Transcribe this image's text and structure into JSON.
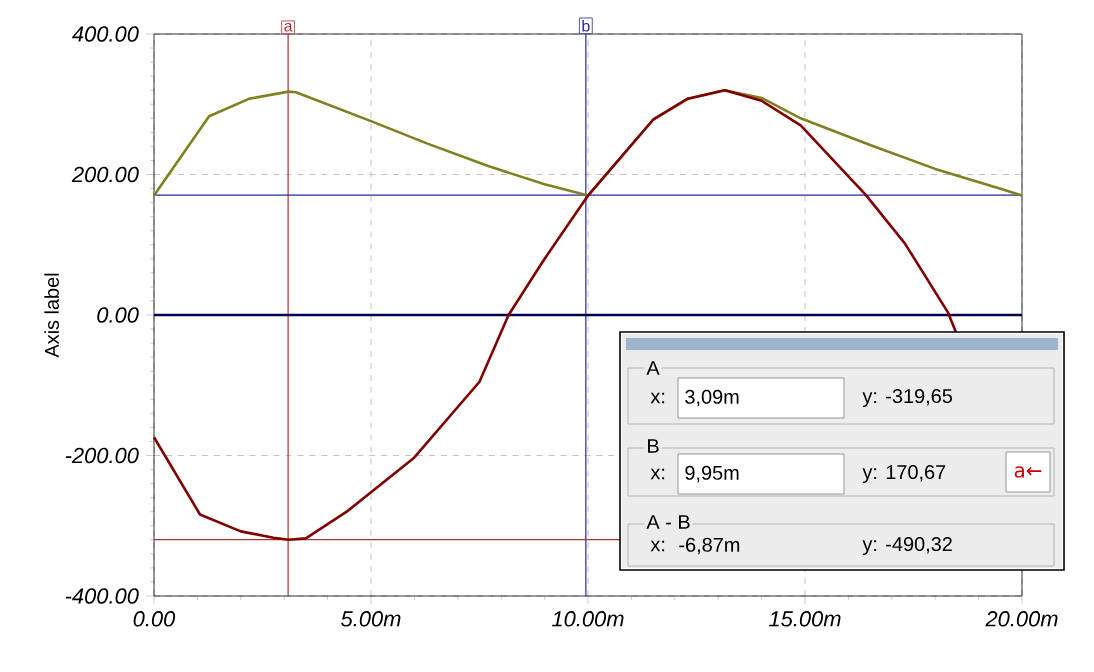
{
  "chart_data": {
    "type": "line",
    "ylabel": "Axis label",
    "xlim": [
      0,
      20
    ],
    "ylim": [
      -400,
      400
    ],
    "xticks": [
      {
        "value": 0,
        "label": "0.00"
      },
      {
        "value": 5,
        "label": "5.00m"
      },
      {
        "value": 10,
        "label": "10.00m"
      },
      {
        "value": 15,
        "label": "15.00m"
      },
      {
        "value": 20,
        "label": "20.00m"
      }
    ],
    "yticks": [
      {
        "value": -400,
        "label": "-400.00"
      },
      {
        "value": -200,
        "label": "-200.00"
      },
      {
        "value": 0,
        "label": "0.00"
      },
      {
        "value": 200,
        "label": "200.00"
      },
      {
        "value": 400,
        "label": "400.00"
      }
    ],
    "grid": true,
    "series": [
      {
        "color": "#808020",
        "x": [
          0,
          1.27,
          2.2,
          3.1,
          3.27,
          5,
          6.3,
          7.7,
          9,
          10,
          11.5,
          12.3,
          13.15,
          14.0,
          14.9,
          16.5,
          18,
          19.6,
          20
        ],
        "values": [
          170,
          283,
          308,
          318,
          317,
          276,
          244,
          212,
          186,
          170,
          278,
          308,
          320,
          309,
          280,
          242,
          208,
          178,
          170
        ]
      },
      {
        "color": "#800000",
        "x": [
          0,
          1.06,
          2.0,
          2.75,
          3.1,
          3.5,
          4.44,
          5.98,
          7.5,
          8.17,
          9,
          10,
          11.5,
          12.3,
          13.15,
          14.0,
          14.9,
          16.4,
          17.3,
          18.3,
          18.5
        ],
        "values": [
          -174,
          -284,
          -308,
          -317,
          -320,
          -318,
          -280,
          -204,
          -95,
          0,
          80,
          170,
          278,
          308,
          320,
          305,
          270,
          171,
          102,
          3,
          -28
        ]
      }
    ],
    "ref_lines": [
      {
        "axis": "x",
        "value": 3.09,
        "label": "a",
        "color": "#b03030"
      },
      {
        "axis": "x",
        "value": 9.95,
        "label": "b",
        "color": "#2828a0"
      },
      {
        "axis": "y",
        "value": -319.65,
        "color": "#b03030"
      },
      {
        "axis": "y",
        "value": 170.67,
        "color": "#2828a0"
      },
      {
        "axis": "y",
        "value": 0,
        "color": "#000050"
      }
    ],
    "annotations": [
      "A",
      "x:",
      "3,09m",
      "y: -319,65",
      "B",
      "x:",
      "9,95m",
      "y: 170,67",
      "A - B",
      "x:",
      "-6,87m",
      "y: -490,32",
      "a←"
    ]
  }
}
